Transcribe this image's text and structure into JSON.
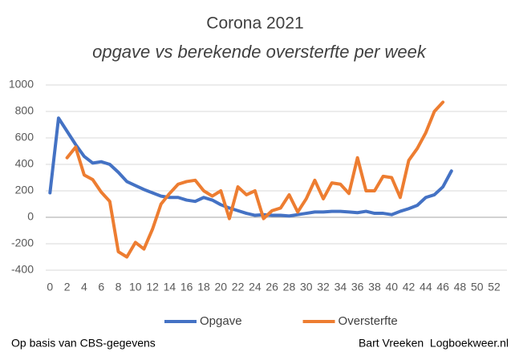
{
  "chart_data": {
    "type": "line",
    "title": "Corona 2021",
    "subtitle": "opgave vs berekende oversterfte per week",
    "x": [
      0,
      1,
      2,
      3,
      4,
      5,
      6,
      7,
      8,
      9,
      10,
      11,
      12,
      13,
      14,
      15,
      16,
      17,
      18,
      19,
      20,
      21,
      22,
      23,
      24,
      25,
      26,
      27,
      28,
      29,
      30,
      31,
      32,
      33,
      34,
      35,
      36,
      37,
      38,
      39,
      40,
      41,
      42,
      43,
      44,
      45,
      46,
      47
    ],
    "series": [
      {
        "name": "Opgave",
        "color": "#4472c4",
        "values": [
          185,
          750,
          650,
          550,
          460,
          410,
          420,
          400,
          340,
          270,
          240,
          210,
          185,
          160,
          150,
          150,
          130,
          120,
          150,
          130,
          95,
          70,
          50,
          30,
          15,
          20,
          15,
          15,
          10,
          20,
          30,
          40,
          40,
          45,
          45,
          40,
          35,
          45,
          30,
          30,
          20,
          45,
          65,
          90,
          150,
          170,
          230,
          350
        ]
      },
      {
        "name": "Oversterfte",
        "color": "#ed7d31",
        "values": [
          null,
          null,
          450,
          530,
          320,
          285,
          190,
          120,
          -260,
          -300,
          -190,
          -240,
          -90,
          100,
          180,
          250,
          270,
          280,
          200,
          160,
          200,
          -10,
          230,
          170,
          200,
          -10,
          50,
          70,
          170,
          40,
          140,
          280,
          140,
          260,
          250,
          180,
          450,
          200,
          200,
          310,
          300,
          150,
          430,
          520,
          640,
          800,
          870,
          null
        ]
      }
    ],
    "xlim": [
      -0.5,
      53.5
    ],
    "xticks": [
      0,
      2,
      4,
      6,
      8,
      10,
      12,
      14,
      16,
      18,
      20,
      22,
      24,
      26,
      28,
      30,
      32,
      34,
      36,
      38,
      40,
      42,
      44,
      46,
      48,
      50,
      52
    ],
    "ylim": [
      -400,
      1000
    ],
    "yticks": [
      -400,
      -200,
      0,
      200,
      400,
      600,
      800,
      1000
    ],
    "grid": true,
    "legend": "bottom",
    "footer_left": "Op basis van CBS-gegevens",
    "footer_right": "Bart Vreeken  Logboekweer.nl"
  }
}
